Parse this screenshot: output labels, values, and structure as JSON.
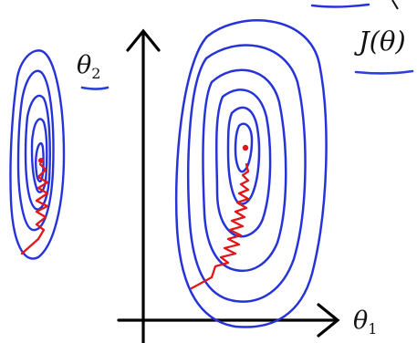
{
  "labels": {
    "theta2": "θ",
    "theta2_sub": "2",
    "theta1": "θ",
    "theta1_sub": "1",
    "cost": "J(θ)"
  },
  "colors": {
    "contour": "#2633d9",
    "path": "#e0161b",
    "axes": "#000000",
    "underline": "#2a3fd6"
  }
}
